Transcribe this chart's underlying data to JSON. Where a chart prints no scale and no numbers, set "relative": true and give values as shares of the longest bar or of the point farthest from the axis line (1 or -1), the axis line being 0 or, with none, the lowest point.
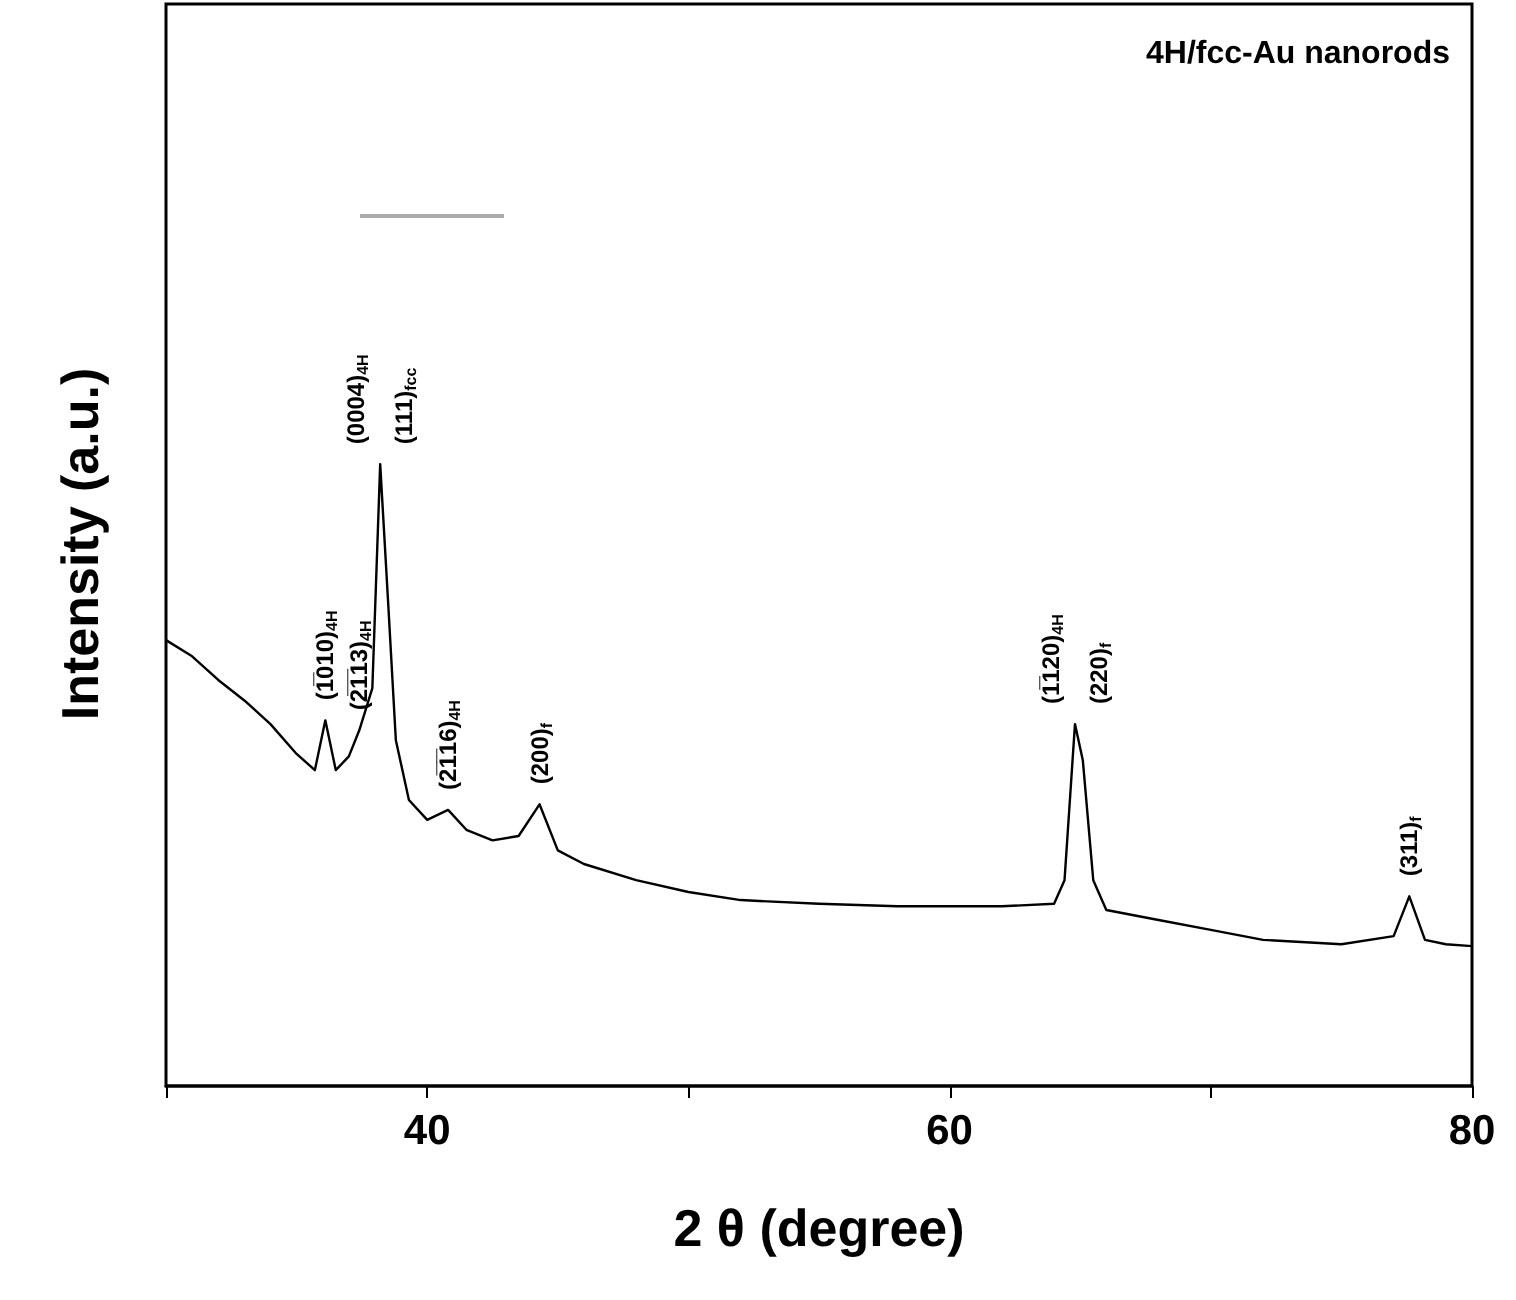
{
  "chart_data": {
    "type": "line",
    "title": "4H/fcc-Au nanorods",
    "xlabel": "2 θ (degree)",
    "ylabel": "Intensity (a.u.)",
    "relative": true,
    "xlim": [
      30,
      80
    ],
    "xticks": [
      {
        "value": 30,
        "label": null
      },
      40,
      {
        "value": 50,
        "label": null
      },
      60,
      {
        "value": 70,
        "label": null
      },
      80
    ],
    "grid": false,
    "series": [
      {
        "color": "#000000",
        "x": [
          30,
          31,
          32,
          33,
          34,
          35,
          35.7,
          36.1,
          36.5,
          37,
          37.4,
          37.9,
          38.2,
          38.5,
          38.8,
          39.3,
          40,
          40.8,
          41.5,
          42.5,
          43.5,
          44.3,
          45,
          46,
          48,
          50,
          52,
          55,
          58,
          62,
          64,
          64.4,
          64.8,
          65.1,
          65.5,
          66,
          68,
          70,
          72,
          75,
          77,
          77.6,
          78.2,
          79,
          80
        ],
        "values": [
          0.717,
          0.691,
          0.653,
          0.62,
          0.582,
          0.534,
          0.508,
          0.588,
          0.508,
          0.53,
          0.572,
          0.64,
          1,
          0.781,
          0.556,
          0.46,
          0.428,
          0.444,
          0.412,
          0.395,
          0.402,
          0.453,
          0.379,
          0.357,
          0.331,
          0.312,
          0.299,
          0.293,
          0.289,
          0.289,
          0.293,
          0.331,
          0.582,
          0.524,
          0.331,
          0.283,
          0.267,
          0.251,
          0.235,
          0.228,
          0.241,
          0.305,
          0.235,
          0.228,
          0.225
        ]
      }
    ],
    "annotations": [
      {
        "text": "(1̅010)$_{4H}$",
        "x": 36.1,
        "y": 0.588
      },
      {
        "text": "(2̅1̅13)$_{4H}$",
        "x": 37.4,
        "y": 0.572
      },
      {
        "text": "(0004)$_{4H}$",
        "x": 38.2,
        "y": 1
      },
      {
        "text": "(111)$_{fcc}$",
        "x": 38.2,
        "y": 1
      },
      {
        "text": "(2̅1̅16)$_{4H}$",
        "x": 40.8,
        "y": 0.444
      },
      {
        "text": "(200)$_{f}$",
        "x": 44.3,
        "y": 0.453
      },
      {
        "text": "(1̅120)$_{4H}$",
        "x": 64.8,
        "y": 0.582
      },
      {
        "text": "(220)$_{f}$",
        "x": 64.8,
        "y": 0.582
      },
      {
        "text": "(311)$_{f}$",
        "x": 77.6,
        "y": 0.305
      }
    ]
  }
}
